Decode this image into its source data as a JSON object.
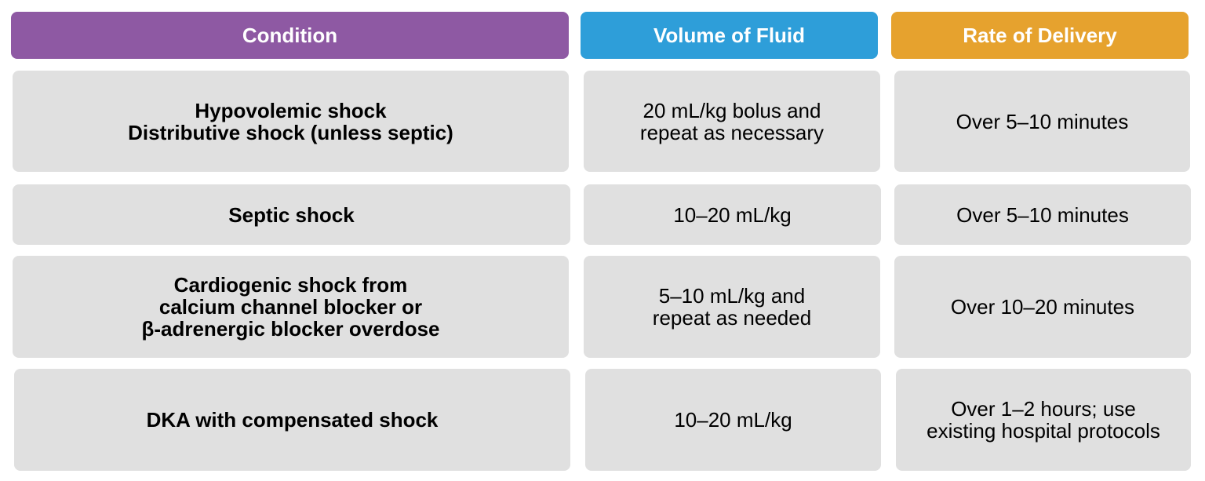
{
  "colors": {
    "condition_header": "#8e59a3",
    "volume_header": "#2e9ed9",
    "rate_header": "#e6a22e",
    "cell_background": "#e0e0e0"
  },
  "headers": {
    "condition": "Condition",
    "volume": "Volume of Fluid",
    "rate": "Rate of Delivery"
  },
  "rows": [
    {
      "condition": "Hypovolemic shock\nDistributive shock (unless septic)",
      "volume": "20 mL/kg bolus and\nrepeat as necessary",
      "rate": "Over 5–10 minutes"
    },
    {
      "condition": "Septic shock",
      "volume": "10–20 mL/kg",
      "rate": "Over 5–10 minutes"
    },
    {
      "condition": "Cardiogenic shock from\ncalcium channel blocker or\nβ-adrenergic blocker overdose",
      "volume": "5–10 mL/kg and\nrepeat as needed",
      "rate": "Over 10–20 minutes"
    },
    {
      "condition": "DKA with compensated shock",
      "volume": "10–20 mL/kg",
      "rate": "Over 1–2 hours; use\nexisting hospital protocols"
    }
  ]
}
